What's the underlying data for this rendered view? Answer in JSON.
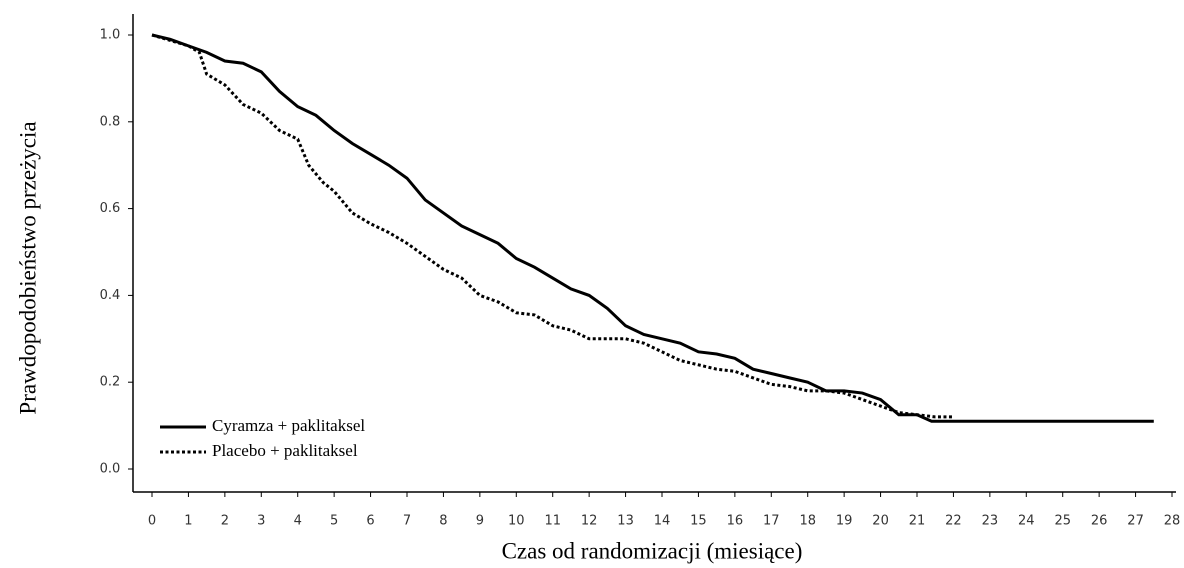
{
  "chart_data": {
    "type": "line",
    "x_label": "Czas od randomizacji (miesiące)",
    "y_label": "Prawdopodobieństwo przeżycia",
    "xlim": [
      0,
      28
    ],
    "ylim": [
      0,
      1
    ],
    "xticks": [
      0,
      1,
      2,
      3,
      4,
      5,
      6,
      7,
      8,
      9,
      10,
      11,
      12,
      13,
      14,
      15,
      16,
      17,
      18,
      19,
      20,
      21,
      22,
      23,
      24,
      25,
      26,
      27,
      28
    ],
    "yticks": [
      {
        "value": 0,
        "label": "0.0"
      },
      {
        "value": 0.2,
        "label": "0.2"
      },
      {
        "value": 0.4,
        "label": "0.4"
      },
      {
        "value": 0.6,
        "label": "0.6"
      },
      {
        "value": 0.8,
        "label": "0.8"
      },
      {
        "value": 1,
        "label": "1.0"
      }
    ],
    "legend": "lower left",
    "series": [
      {
        "name": "Cyramza + paklitaksel",
        "color": "#000000",
        "style": "solid",
        "x": [
          0,
          0.5,
          1,
          1.5,
          2,
          2.5,
          3,
          3.5,
          4,
          4.5,
          5,
          5.5,
          6,
          6.5,
          7,
          7.5,
          8,
          8.5,
          9,
          9.5,
          10,
          10.5,
          11,
          11.5,
          12,
          12.5,
          13,
          13.5,
          14,
          14.5,
          15,
          15.5,
          16,
          16.5,
          17,
          17.5,
          18,
          18.5,
          19,
          19.5,
          20,
          20.5,
          21,
          21.4,
          27.5
        ],
        "values": [
          1.0,
          0.99,
          0.975,
          0.96,
          0.94,
          0.935,
          0.915,
          0.87,
          0.835,
          0.815,
          0.78,
          0.75,
          0.725,
          0.7,
          0.67,
          0.62,
          0.59,
          0.56,
          0.54,
          0.52,
          0.485,
          0.465,
          0.44,
          0.415,
          0.4,
          0.37,
          0.33,
          0.31,
          0.3,
          0.29,
          0.27,
          0.265,
          0.255,
          0.23,
          0.22,
          0.21,
          0.2,
          0.18,
          0.18,
          0.175,
          0.16,
          0.125,
          0.125,
          0.11,
          0.11
        ]
      },
      {
        "name": "Placebo + paklitaksel",
        "color": "#000000",
        "style": "dotted",
        "x": [
          0,
          1,
          1.3,
          1.5,
          2,
          2.5,
          3,
          3.5,
          4,
          4.3,
          4.7,
          5,
          5.5,
          6,
          6.5,
          7,
          7.5,
          8,
          8.5,
          9,
          9.5,
          10,
          10.5,
          11,
          11.5,
          12,
          12.5,
          13,
          13.5,
          14,
          14.5,
          15,
          15.5,
          16,
          16.5,
          17,
          17.5,
          18,
          18.5,
          19,
          19.5,
          20,
          20.5,
          21,
          21.5,
          22
        ],
        "values": [
          1.0,
          0.975,
          0.96,
          0.91,
          0.885,
          0.84,
          0.82,
          0.78,
          0.76,
          0.7,
          0.66,
          0.64,
          0.59,
          0.565,
          0.545,
          0.52,
          0.49,
          0.46,
          0.44,
          0.4,
          0.385,
          0.36,
          0.355,
          0.33,
          0.32,
          0.3,
          0.3,
          0.3,
          0.29,
          0.27,
          0.25,
          0.24,
          0.23,
          0.225,
          0.21,
          0.195,
          0.19,
          0.18,
          0.18,
          0.175,
          0.16,
          0.145,
          0.13,
          0.125,
          0.12,
          0.12
        ]
      }
    ]
  }
}
